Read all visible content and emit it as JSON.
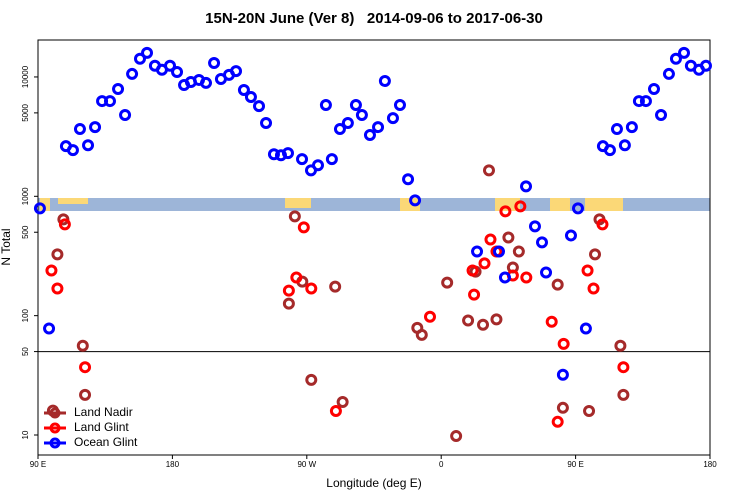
{
  "chart_data": {
    "type": "scatter",
    "title": "15N-20N June (Ver 8)   2014-09-06 to 2017-06-30",
    "x_label": "Longitude (deg E)",
    "y_label": "N Total",
    "xlim": [
      90,
      540
    ],
    "xticks": [
      {
        "value": 90,
        "label": "90 E"
      },
      {
        "value": 180,
        "label": "180"
      },
      {
        "value": 270,
        "label": "90 W"
      },
      {
        "value": 360,
        "label": "0"
      },
      {
        "value": 450,
        "label": "90 E"
      },
      {
        "value": 540,
        "label": "180"
      }
    ],
    "ylim": [
      6.8,
      20400
    ],
    "y_log": true,
    "yticks": [
      10,
      50,
      100,
      500,
      1000,
      5000,
      10000
    ],
    "hline": 50,
    "legend": "bottomleft",
    "series": [
      {
        "name": "Land Nadir",
        "color": "#a52a2a",
        "x": [
          100,
          103,
          107,
          120,
          121.5,
          258,
          262,
          267,
          273,
          289,
          294,
          344,
          347,
          364,
          370,
          378,
          383,
          388,
          392,
          397,
          405,
          408,
          412,
          438,
          441.5,
          459,
          463,
          466,
          480,
          482
        ],
        "values": [
          16,
          326,
          641,
          56,
          21.7,
          126,
          679,
          193,
          29,
          175,
          18.9,
          79,
          69,
          189,
          9.8,
          91,
          234,
          84,
          1650,
          93,
          452,
          253,
          345,
          182,
          16.9,
          15.9,
          326,
          641,
          56,
          21.7
        ]
      },
      {
        "name": "Land Glint",
        "color": "#ff0000",
        "x": [
          99,
          103,
          108,
          121.5,
          258,
          263,
          268,
          273,
          289.5,
          352.5,
          381,
          382,
          389,
          393,
          397,
          403,
          408,
          413,
          417,
          434,
          438,
          442,
          458,
          462,
          468,
          482
        ],
        "values": [
          239,
          169,
          582,
          37,
          162,
          209,
          549,
          169,
          15.9,
          98,
          239,
          150,
          274,
          435,
          345,
          748,
          217,
          824,
          209,
          89,
          12.9,
          58,
          239,
          169,
          582,
          37
        ]
      },
      {
        "name": "Ocean Glint",
        "color": "#0000ff",
        "x": [
          91.3,
          97.4,
          108.7,
          113.4,
          118.1,
          123.5,
          128.2,
          132.9,
          138.2,
          143.6,
          148.3,
          153,
          158.3,
          163,
          168.3,
          173,
          178.4,
          183.1,
          187.8,
          192.4,
          197.8,
          202.5,
          207.9,
          212.5,
          217.9,
          222.6,
          227.9,
          232.6,
          238,
          242.7,
          248,
          252.7,
          257.4,
          266.8,
          272.8,
          277.5,
          286.8,
          282.8,
          292.2,
          297.5,
          302.9,
          306.9,
          312.3,
          317.7,
          322.3,
          327.7,
          332.4,
          337.8,
          342.5,
          384,
          398.7,
          402.7,
          416.8,
          422.8,
          427.5,
          430.2,
          441.5,
          446.9,
          451.6,
          456.9,
          468.3,
          473,
          477.7,
          483,
          487.7,
          492.4,
          497.1,
          502.5,
          507.2,
          512.5,
          517.2,
          522.6,
          527.2,
          532.6,
          537.3
        ],
        "values": [
          793,
          78,
          2630,
          2440,
          3660,
          2680,
          3800,
          6280,
          6280,
          7930,
          4800,
          10600,
          14200,
          15900,
          12400,
          11500,
          12400,
          11000,
          8570,
          9080,
          9440,
          8910,
          13100,
          9620,
          10400,
          11200,
          7780,
          6790,
          5700,
          4110,
          2250,
          2210,
          2300,
          2050,
          1650,
          1820,
          2050,
          5820,
          3660,
          4110,
          5820,
          4800,
          3260,
          3800,
          9250,
          4520,
          5820,
          1390,
          925,
          345,
          345,
          209,
          1210,
          560,
          411,
          230,
          32,
          470,
          793,
          78,
          2630,
          2440,
          3660,
          2680,
          3800,
          6280,
          6280,
          7930,
          4800,
          10600,
          14200,
          15900,
          12400,
          11500,
          12400
        ]
      }
    ]
  }
}
